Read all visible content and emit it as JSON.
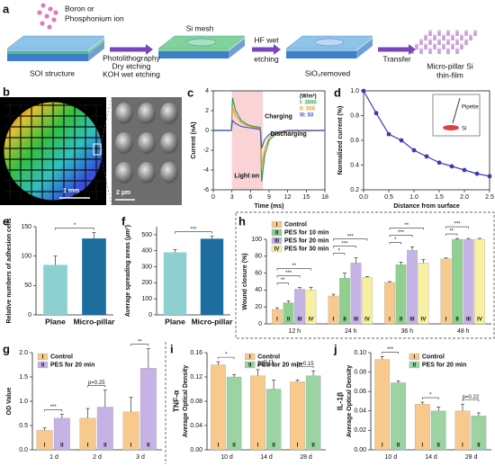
{
  "diagram": {
    "label": "a",
    "ion": [
      "Boron or",
      "Phosphonium ion"
    ],
    "steps": [
      [
        "SOI structure"
      ],
      [
        "Si mesh"
      ],
      [
        "SiO₂removed"
      ],
      [
        "Micro-pillar Si",
        "thin-film"
      ]
    ],
    "processes": [
      [
        "Photolithography",
        "Dry etching",
        "KOH wet etching"
      ],
      [
        "HF wet",
        "etching"
      ],
      [
        "Transfer"
      ]
    ]
  },
  "images": {
    "label": "b",
    "scale_wafer": "1 mm",
    "scale_sem": "2 µm"
  },
  "chart_data": [
    {
      "label": "c",
      "type": "line",
      "xlabel": "Time (ms)",
      "ylabel": "Current (nA)",
      "x": [
        0,
        2.9,
        3.1,
        3.6,
        4.5,
        5.5,
        6.5,
        7.6,
        7.8,
        8.3,
        9,
        10,
        12,
        18
      ],
      "xlim": [
        0,
        18
      ],
      "xticks": [
        0,
        3,
        6,
        9,
        12,
        15,
        18
      ],
      "ylim": [
        -6,
        4
      ],
      "yticks": [
        -6,
        -4,
        -2,
        0,
        2,
        4
      ],
      "legend_title": "(W/m²)",
      "shade": [
        3,
        8
      ],
      "annotations": [
        "Charging",
        "Discharging",
        "Light on"
      ],
      "series": [
        {
          "name": "I: 3000",
          "color": "#2e9e5a",
          "values": [
            0,
            0,
            3.3,
            2.0,
            1.0,
            0.6,
            0.4,
            0.3,
            -5.2,
            -2.5,
            -1.0,
            -0.4,
            -0.1,
            0
          ]
        },
        {
          "name": "II: 500",
          "color": "#e89a2c",
          "values": [
            0,
            0,
            2.3,
            1.5,
            0.8,
            0.5,
            0.3,
            0.2,
            -3.8,
            -1.8,
            -0.7,
            -0.3,
            -0.1,
            0
          ]
        },
        {
          "name": "III: 50",
          "color": "#3b5bc4",
          "values": [
            0,
            0,
            1.0,
            0.7,
            0.4,
            0.3,
            0.2,
            0.1,
            -1.8,
            -0.9,
            -0.4,
            -0.2,
            0,
            0
          ]
        }
      ]
    },
    {
      "label": "d",
      "type": "line",
      "markers": true,
      "xlabel": "Distance from surface",
      "ylabel": "Normalized current (%)",
      "x": [
        0,
        0.25,
        0.5,
        0.75,
        1.0,
        1.25,
        1.5,
        1.75,
        2.0,
        2.25,
        2.5
      ],
      "values": [
        1.0,
        0.82,
        0.65,
        0.6,
        0.52,
        0.47,
        0.42,
        0.39,
        0.36,
        0.33,
        0.31
      ],
      "color": "#3b3bb3",
      "xlim": [
        0,
        2.5
      ],
      "xticks": [
        {
          "value": 0,
          "label": "0.0"
        },
        0.5,
        {
          "value": 1,
          "label": "1.0"
        },
        1.5,
        {
          "value": 2,
          "label": "2.0"
        },
        2.5
      ],
      "ylim": [
        0.2,
        1.0
      ],
      "yticks": [
        0.2,
        0.4,
        0.6,
        0.8,
        {
          "value": 1,
          "label": "1.0"
        }
      ],
      "inset": [
        "Pipette",
        "Si"
      ]
    },
    {
      "label": "e",
      "type": "bar",
      "ylabel": "Relative numbers of adhesion cells",
      "categories": [
        "Plane",
        "Micro-pillar"
      ],
      "values": [
        85,
        130
      ],
      "errors": [
        15,
        10
      ],
      "colors": [
        "#8ecfcf",
        "#1d6d9e"
      ],
      "ylim": [
        0,
        150
      ],
      "yticks": [
        0,
        50,
        100,
        150
      ],
      "annotation": "*"
    },
    {
      "label": "f",
      "type": "bar",
      "ylabel": "Average spreading areas (µm²)",
      "categories": [
        "Plane",
        "Micro-pillar"
      ],
      "values": [
        390,
        475
      ],
      "errors": [
        18,
        15
      ],
      "colors": [
        "#8ecfcf",
        "#1d6d9e"
      ],
      "ylim": [
        0,
        550
      ],
      "yticks": [
        0,
        100,
        200,
        300,
        400,
        500
      ],
      "annotation": "***"
    },
    {
      "label": "h",
      "type": "bar",
      "ylabel": "Wound closure (%)",
      "categories": [
        "12 h",
        "24 h",
        "36 h",
        "48 h"
      ],
      "ylim": [
        0,
        100
      ],
      "yticks": [
        0,
        20,
        40,
        60,
        80,
        100
      ],
      "series": [
        {
          "name": "Control",
          "label": "I",
          "color": "#f7c98c",
          "values": [
            17,
            33,
            49,
            77
          ],
          "errors": [
            2,
            2,
            1,
            1
          ]
        },
        {
          "name": "PES for 10 min",
          "label": "II",
          "color": "#8fcf8f",
          "values": [
            25,
            54,
            70,
            100
          ],
          "errors": [
            2,
            6,
            3,
            1
          ]
        },
        {
          "name": "PES for 20 min",
          "label": "III",
          "color": "#c6b3e6",
          "values": [
            41,
            72,
            87,
            100
          ],
          "errors": [
            2,
            6,
            4,
            1
          ]
        },
        {
          "name": "PES for 30 min",
          "label": "IV",
          "color": "#f7f0a0",
          "values": [
            40,
            55,
            72,
            100
          ],
          "errors": [
            3,
            1,
            4,
            1
          ]
        }
      ],
      "annotations": [
        [
          "**",
          "***",
          "**"
        ],
        [
          "*",
          "***",
          "***"
        ],
        [
          "*",
          "***",
          "**"
        ],
        [
          "**",
          "***"
        ]
      ]
    },
    {
      "label": "g",
      "type": "bar",
      "ylabel": "OD Value",
      "categories": [
        "1 d",
        "2 d",
        "3 d"
      ],
      "ylim": [
        0,
        2
      ],
      "yticks": [
        {
          "value": 0,
          "label": "0.0"
        },
        0.5,
        {
          "value": 1,
          "label": "1.0"
        },
        1.5,
        {
          "value": 2,
          "label": "2.0"
        }
      ],
      "series": [
        {
          "name": "Control",
          "label": "I",
          "color": "#f7c98c",
          "values": [
            0.4,
            0.65,
            0.78
          ],
          "errors": [
            0.05,
            0.2,
            0.3
          ]
        },
        {
          "name": "PES for 20 min",
          "label": "II",
          "color": "#c6b3e6",
          "values": [
            0.65,
            0.88,
            1.68
          ],
          "errors": [
            0.08,
            0.35,
            0.4
          ]
        }
      ],
      "annotations": [
        [
          "***"
        ],
        [
          "p=0.25"
        ],
        [
          "**"
        ]
      ]
    },
    {
      "label": "i",
      "type": "bar",
      "ylabel": "Average Optical Density",
      "ylabel2": "TNF-α",
      "categories": [
        "10 d",
        "14 d",
        "28 d"
      ],
      "ylim": [
        0,
        0.16
      ],
      "yticks": [
        {
          "value": 0,
          "label": "0.00"
        },
        0.04,
        0.08,
        0.12,
        0.16
      ],
      "series": [
        {
          "name": "Control",
          "label": "I",
          "color": "#f7c98c",
          "values": [
            0.14,
            0.122,
            0.112
          ],
          "errors": [
            0.005,
            0.01,
            0.003
          ]
        },
        {
          "name": "PES for 20 min",
          "label": "II",
          "color": "#9bd3a3",
          "values": [
            0.12,
            0.1,
            0.122
          ],
          "errors": [
            0.004,
            0.015,
            0.008
          ]
        }
      ],
      "annotations": [
        [
          "*"
        ],
        [
          "p=0.11"
        ],
        [
          "p=0.15"
        ]
      ]
    },
    {
      "label": "j",
      "type": "bar",
      "ylabel": "Average Optical Density",
      "ylabel2": "IL-1β",
      "categories": [
        "10 d",
        "14 d",
        "28 d"
      ],
      "ylim": [
        0,
        0.1
      ],
      "yticks": [
        {
          "value": 0,
          "label": "0.00"
        },
        0.02,
        0.04,
        0.06,
        0.08,
        {
          "value": 0.1,
          "label": "0.10"
        }
      ],
      "series": [
        {
          "name": "Control",
          "label": "I",
          "color": "#f7c98c",
          "values": [
            0.093,
            0.047,
            0.04
          ],
          "errors": [
            0.003,
            0.002,
            0.007
          ]
        },
        {
          "name": "PES for 20 min",
          "label": "II",
          "color": "#9bd3a3",
          "values": [
            0.069,
            0.04,
            0.035
          ],
          "errors": [
            0.002,
            0.004,
            0.003
          ]
        }
      ],
      "annotations": [
        [
          "***"
        ],
        [
          "*"
        ],
        [
          "p=0.22"
        ]
      ]
    }
  ]
}
